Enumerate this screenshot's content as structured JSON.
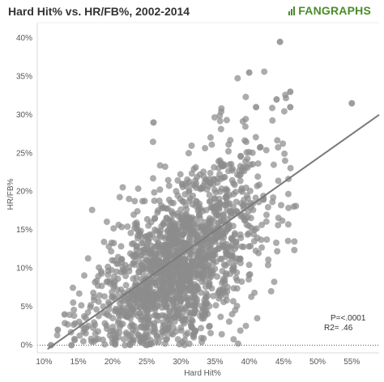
{
  "chart_data": {
    "type": "scatter",
    "title": "Hard Hit% vs. HR/FB%, 2002-2014",
    "brand": "FANGRAPHS",
    "xlabel": "Hard Hit%",
    "ylabel": "HR/FB%",
    "xlim": [
      9,
      59
    ],
    "ylim": [
      -1,
      42
    ],
    "x_ticks": [
      10,
      15,
      20,
      25,
      30,
      35,
      40,
      45,
      50,
      55
    ],
    "x_tick_labels": [
      "10%",
      "15%",
      "20%",
      "25%",
      "30%",
      "35%",
      "40%",
      "45%",
      "50%",
      "55%"
    ],
    "y_ticks": [
      0,
      5,
      10,
      15,
      20,
      25,
      30,
      35,
      40
    ],
    "y_tick_labels": [
      "0%",
      "5%",
      "10%",
      "15%",
      "20%",
      "25%",
      "30%",
      "35%",
      "40%"
    ],
    "point_color": "#8c8c8c",
    "trend_color": "#7a7a7a",
    "trendline": {
      "x1": 10.5,
      "y1": -0.5,
      "x2": 59,
      "y2": 30
    },
    "annotation_p": "P=<.0001",
    "annotation_r2": "R2=  .46",
    "highlight_points": [
      {
        "x": 44.5,
        "y": 39.5
      },
      {
        "x": 55,
        "y": 31.5
      },
      {
        "x": 40,
        "y": 35.5
      },
      {
        "x": 46,
        "y": 33
      },
      {
        "x": 46,
        "y": 31
      },
      {
        "x": 44,
        "y": 32
      },
      {
        "x": 41,
        "y": 31
      },
      {
        "x": 26,
        "y": 29
      },
      {
        "x": 11,
        "y": 0
      },
      {
        "x": 13,
        "y": 4
      },
      {
        "x": 14,
        "y": 0
      },
      {
        "x": 12,
        "y": 2
      }
    ],
    "cloud": {
      "count": 1700,
      "x_mean": 29.5,
      "x_sd": 6.3,
      "x_min": 11,
      "x_max": 47,
      "slope": 0.57,
      "intercept": -6.5,
      "resid_sd": 4.3,
      "y_min": 0,
      "y_max": 38
    }
  }
}
